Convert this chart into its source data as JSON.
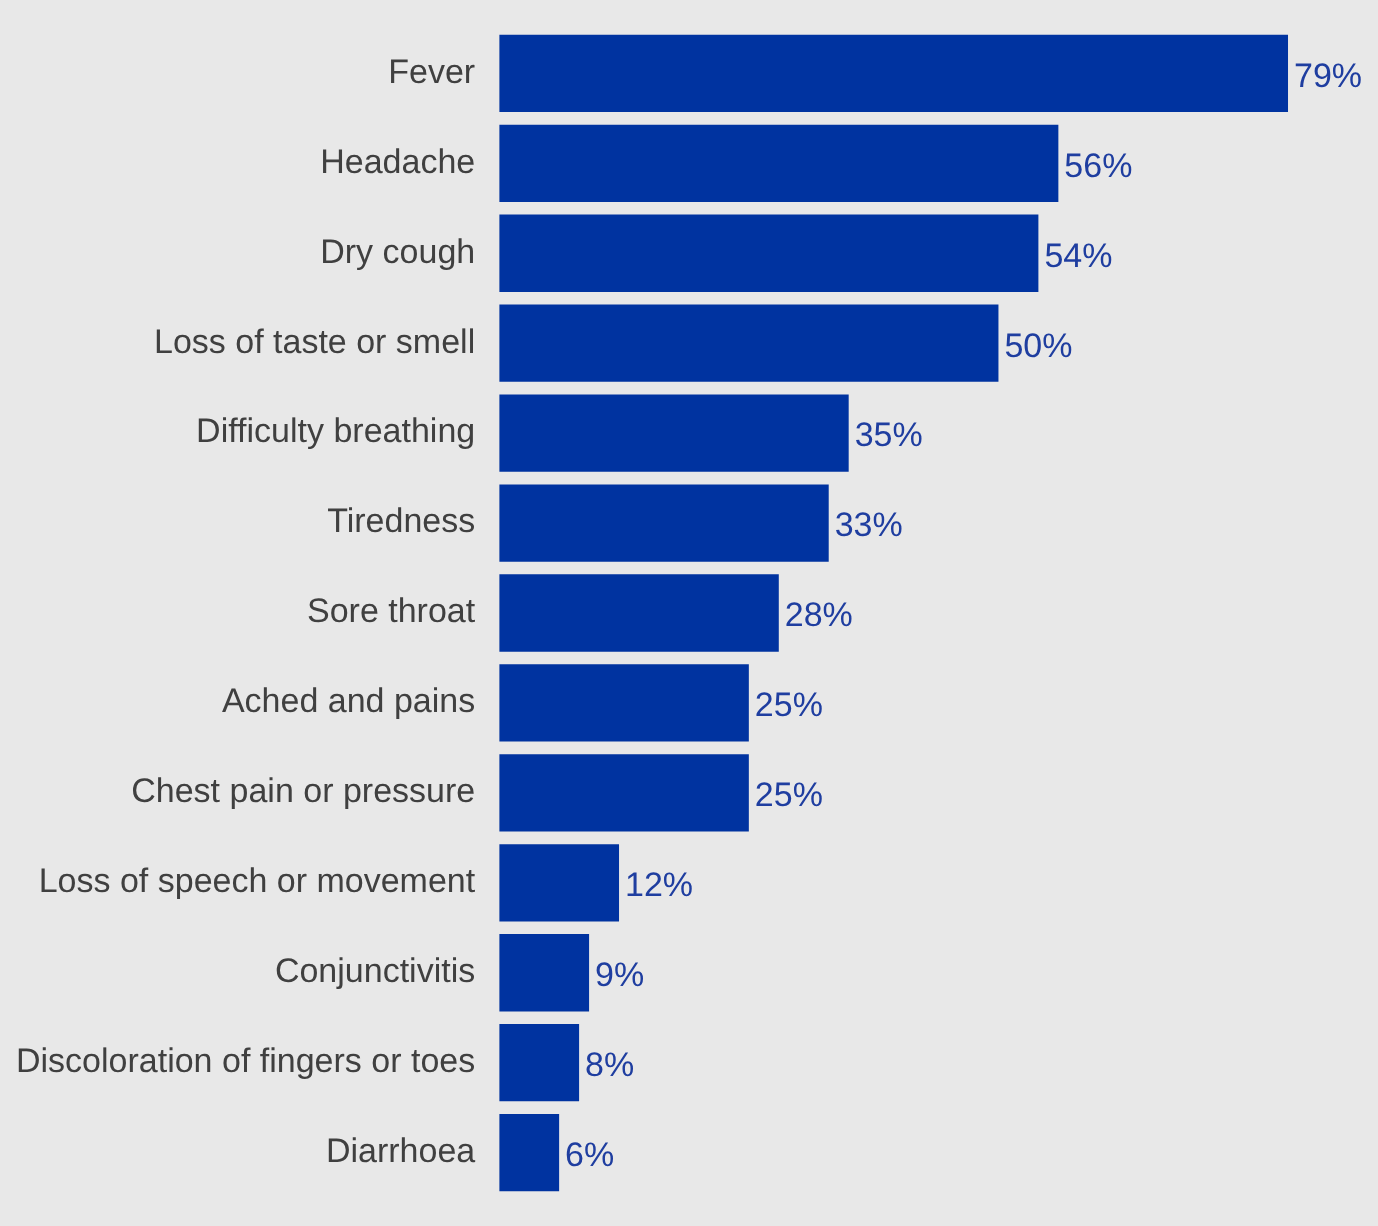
{
  "chart_data": {
    "type": "bar",
    "orientation": "horizontal",
    "color": "#0033a0",
    "categories": [
      "Fever",
      "Headache",
      "Dry cough",
      "Loss of taste or smell",
      "Difficulty breathing",
      "Tiredness",
      "Sore throat",
      "Ached and pains",
      "Chest pain or pressure",
      "Loss of speech or movement",
      "Conjunctivitis",
      "Discoloration of fingers or toes",
      "Diarrhoea"
    ],
    "values": [
      79,
      56,
      54,
      50,
      35,
      33,
      28,
      25,
      25,
      12,
      9,
      8,
      6
    ],
    "value_labels": [
      "79%",
      "56%",
      "54%",
      "50%",
      "35%",
      "33%",
      "28%",
      "25%",
      "25%",
      "12%",
      "9%",
      "8%",
      "6%"
    ],
    "legend": false
  }
}
